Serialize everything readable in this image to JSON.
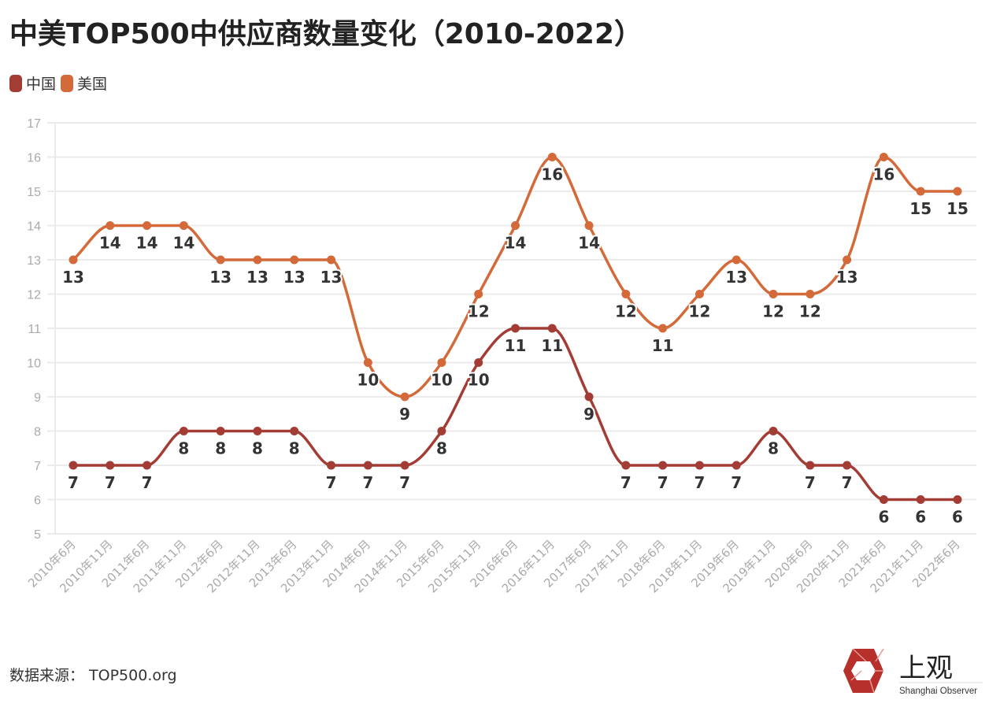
{
  "title": "中美TOP500中供应商数量变化（2010-2022）",
  "source": "数据来源：  TOP500.org",
  "logo": {
    "text": "上观",
    "sub": "Shanghai Observer"
  },
  "chart_data": {
    "type": "line",
    "title": "中美TOP500中供应商数量变化（2010-2022）",
    "xlabel": "",
    "ylabel": "",
    "ylim": [
      5,
      17
    ],
    "yticks": [
      5,
      6,
      7,
      8,
      9,
      10,
      11,
      12,
      13,
      14,
      15,
      16,
      17
    ],
    "grid": true,
    "legend_position": "top-left",
    "categories": [
      "2010年6月",
      "2010年11月",
      "2011年6月",
      "2011年11月",
      "2012年6月",
      "2012年11月",
      "2013年6月",
      "2013年11月",
      "2014年6月",
      "2014年11月",
      "2015年6月",
      "2015年11月",
      "2016年6月",
      "2016年11月",
      "2017年6月",
      "2017年11月",
      "2018年6月",
      "2018年11月",
      "2019年6月",
      "2019年11月",
      "2020年6月",
      "2020年11月",
      "2021年6月",
      "2021年11月",
      "2022年6月"
    ],
    "series": [
      {
        "name": "中国",
        "color": "#a23c35",
        "values": [
          7,
          7,
          7,
          8,
          8,
          8,
          8,
          7,
          7,
          7,
          8,
          10,
          11,
          11,
          9,
          7,
          7,
          7,
          7,
          8,
          7,
          7,
          6,
          6,
          6
        ]
      },
      {
        "name": "美国",
        "color": "#d4693a",
        "values": [
          13,
          14,
          14,
          14,
          13,
          13,
          13,
          13,
          10,
          9,
          10,
          12,
          14,
          16,
          14,
          12,
          11,
          12,
          13,
          12,
          12,
          13,
          16,
          15,
          15
        ]
      }
    ]
  }
}
